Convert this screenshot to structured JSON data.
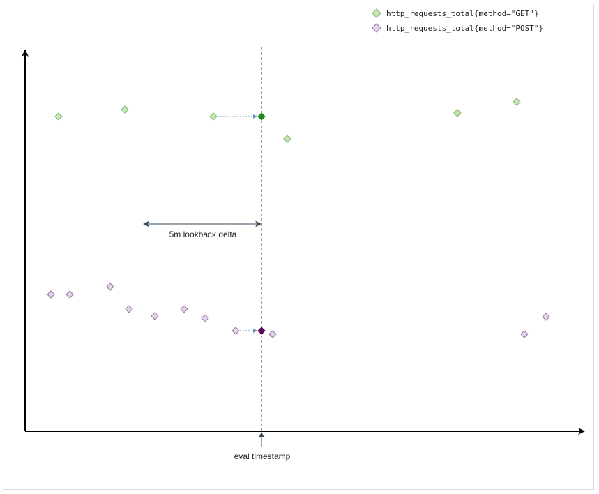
{
  "legend": [
    {
      "name": "http_requests_total{method=\"GET\"}",
      "color": "#c5e5b7",
      "stroke": "#82b366"
    },
    {
      "name": "http_requests_total{method=\"POST\"}",
      "color": "#e1d5e7",
      "stroke": "#9673a6"
    }
  ],
  "annotations": {
    "lookback_label": "5m lookback delta",
    "eval_label": "eval timestamp"
  },
  "chart_data": {
    "type": "scatter",
    "title": "",
    "xlabel": "",
    "ylabel": "",
    "series": [
      {
        "name": "http_requests_total{method=\"GET\"}",
        "points": [
          [
            84,
            167
          ],
          [
            179,
            157
          ],
          [
            306,
            167
          ],
          [
            412,
            199
          ],
          [
            656,
            162
          ],
          [
            741,
            146
          ]
        ],
        "selected": [
          375,
          167
        ],
        "selected_color": "#1a8c1a"
      },
      {
        "name": "http_requests_total{method=\"POST\"}",
        "points": [
          [
            73,
            422
          ],
          [
            100,
            422
          ],
          [
            158,
            411
          ],
          [
            185,
            443
          ],
          [
            222,
            453
          ],
          [
            264,
            443
          ],
          [
            294,
            456
          ],
          [
            338,
            474
          ],
          [
            391,
            479
          ],
          [
            752,
            479
          ],
          [
            783,
            454
          ]
        ],
        "selected": [
          375,
          474
        ],
        "selected_color": "#5c0a5c"
      }
    ]
  }
}
